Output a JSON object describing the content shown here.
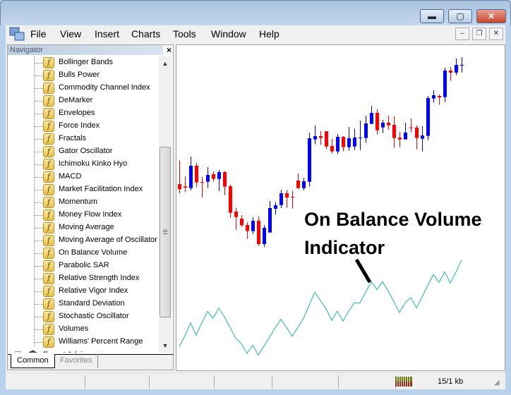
{
  "window": {
    "controls": {
      "minimize": "▬",
      "maximize": "▢",
      "close": "✕"
    }
  },
  "menu": {
    "items": [
      "File",
      "View",
      "Insert",
      "Charts",
      "Tools",
      "Window",
      "Help"
    ],
    "mdi_controls": {
      "minimize": "–",
      "restore": "❐",
      "close": "✕"
    }
  },
  "navigator": {
    "title": "Navigator",
    "close": "×",
    "items": [
      "Bollinger Bands",
      "Bulls Power",
      "Commodity Channel Index",
      "DeMarker",
      "Envelopes",
      "Force Index",
      "Fractals",
      "Gator Oscillator",
      "Ichimoku Kinko Hyo",
      "MACD",
      "Market Facilitation Index",
      "Momentum",
      "Money Flow Index",
      "Moving Average",
      "Moving Average of Oscillator",
      "On Balance Volume",
      "Parabolic SAR",
      "Relative Strength Index",
      "Relative Vigor Index",
      "Standard Deviation",
      "Stochastic Oscillator",
      "Volumes",
      "Williams' Percent Range"
    ],
    "folder": "Expert Advisors",
    "tabs": [
      "Common",
      "Favorites"
    ],
    "active_tab": "Common"
  },
  "chart": {
    "annotation": [
      "On Balance Volume",
      "Indicator"
    ],
    "colors": {
      "bull": "#0000ff",
      "bear": "#ff0000",
      "obv": "#20b2aa"
    }
  },
  "status": {
    "traffic": "15/1 kb"
  },
  "chart_data": {
    "type": "candlestick",
    "candles_ohlc": [
      [
        53.0,
        43.0,
        40.8,
        39.0
      ],
      [
        46.3,
        42.0,
        41.5,
        39.5
      ],
      [
        54.7,
        41.3,
        50.8,
        40.3
      ],
      [
        52.0,
        50.8,
        43.7,
        41.7
      ],
      [
        46.0,
        43.9,
        43.6,
        37.3
      ],
      [
        50.2,
        44.0,
        46.9,
        41.3
      ],
      [
        48.4,
        47.2,
        45.2,
        44.0
      ],
      [
        49.0,
        45.2,
        48.1,
        40.0
      ],
      [
        48.6,
        48.1,
        41.9,
        38.3
      ],
      [
        42.7,
        42.1,
        30.8,
        28.7
      ],
      [
        32.8,
        31.3,
        29.0,
        23.5
      ],
      [
        29.8,
        28.3,
        25.5,
        24.8
      ],
      [
        26.8,
        25.6,
        23.0,
        19.7
      ],
      [
        28.9,
        23.0,
        27.4,
        21.7
      ],
      [
        29.2,
        27.4,
        17.5,
        16.7
      ],
      [
        25.6,
        17.5,
        24.4,
        16.2
      ],
      [
        35.8,
        22.4,
        32.8,
        22.4
      ],
      [
        35.4,
        32.5,
        34.0,
        30.0
      ],
      [
        40.6,
        34.1,
        39.1,
        32.8
      ],
      [
        40.6,
        39.1,
        37.3,
        32.9
      ],
      [
        40.2,
        37.6,
        37.3,
        32.6
      ],
      [
        47.5,
        44.5,
        41.3,
        41.0
      ],
      [
        45.7,
        41.3,
        44.2,
        40.3
      ],
      [
        64.9,
        44.0,
        62.5,
        41.9
      ],
      [
        67.9,
        62.0,
        63.4,
        59.9
      ],
      [
        65.5,
        63.4,
        62.6,
        59.6
      ],
      [
        65.5,
        65.5,
        59.0,
        57.8
      ],
      [
        62.2,
        59.2,
        56.9,
        56.0
      ],
      [
        64.3,
        56.9,
        63.1,
        55.7
      ],
      [
        63.4,
        63.1,
        58.7,
        56.9
      ],
      [
        67.3,
        58.7,
        62.5,
        57.2
      ],
      [
        66.5,
        59.0,
        62.8,
        57.5
      ],
      [
        70.0,
        62.6,
        62.8,
        57.5
      ],
      [
        72.1,
        62.6,
        68.8,
        60.5
      ],
      [
        76.3,
        68.6,
        73.3,
        68.6
      ],
      [
        74.8,
        73.3,
        65.9,
        64.1
      ],
      [
        70.3,
        67.1,
        69.1,
        64.7
      ],
      [
        72.1,
        69.1,
        68.0,
        66.2
      ],
      [
        71.8,
        68.2,
        62.6,
        58.4
      ],
      [
        65.2,
        62.8,
        62.0,
        58.7
      ],
      [
        69.1,
        62.0,
        64.9,
        62.0
      ],
      [
        70.9,
        67.1,
        66.8,
        65.0
      ],
      [
        67.9,
        67.0,
        62.6,
        57.8
      ],
      [
        67.6,
        62.3,
        63.7,
        56.9
      ],
      [
        80.5,
        63.5,
        79.6,
        61.7
      ],
      [
        82.9,
        79.4,
        80.8,
        77.6
      ],
      [
        81.1,
        80.5,
        79.9,
        76.7
      ],
      [
        92.5,
        80.0,
        91.3,
        77.9
      ],
      [
        92.8,
        91.3,
        90.4,
        86.9
      ],
      [
        96.4,
        90.4,
        93.7,
        89.3
      ],
      [
        97.0,
        93.5,
        93.7,
        90.5
      ]
    ],
    "obv": [
      108,
      155,
      210,
      158,
      210,
      258,
      230,
      273,
      235,
      190,
      145,
      120,
      80,
      115,
      73,
      110,
      150,
      190,
      225,
      190,
      153,
      190,
      230,
      285,
      340,
      305,
      270,
      220,
      260,
      217,
      260,
      295,
      295,
      340,
      385,
      352,
      385,
      345,
      300,
      254,
      295,
      318,
      273,
      320,
      370,
      415,
      382,
      427,
      379,
      425,
      477
    ],
    "price_ylim": [
      0,
      100
    ]
  }
}
